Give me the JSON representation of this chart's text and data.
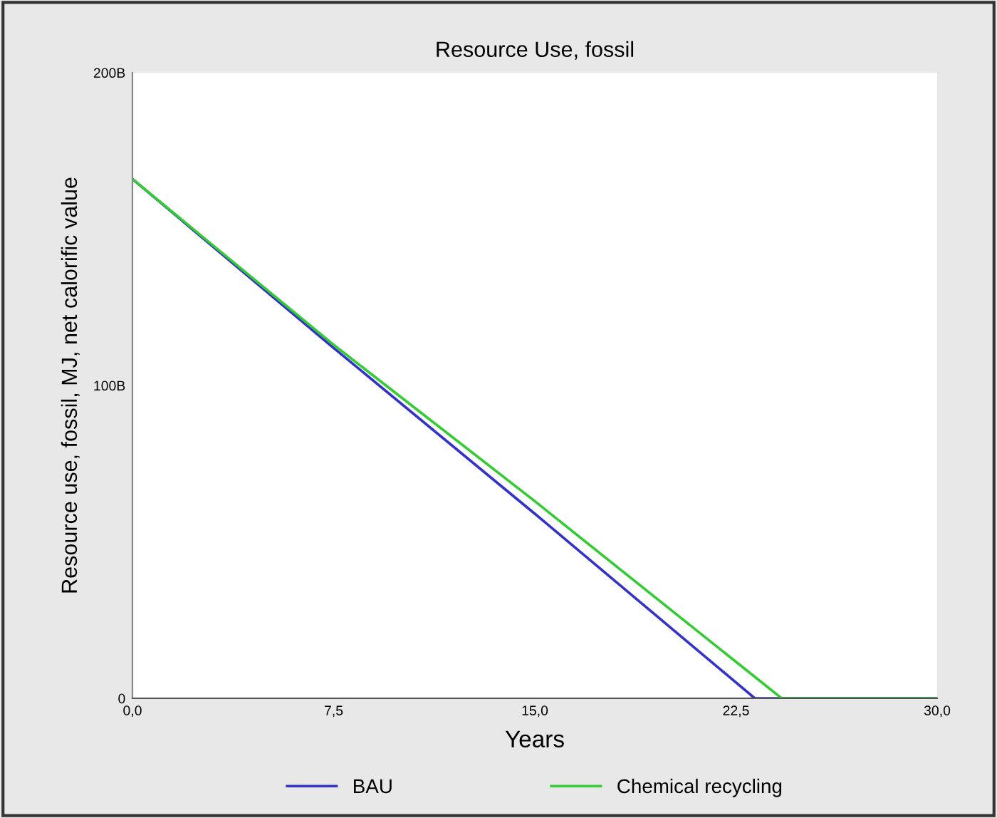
{
  "chart_data": {
    "type": "line",
    "title": "Resource Use, fossil",
    "xlabel": "Years",
    "ylabel": "Resource use, fossil, MJ, net calorific value",
    "series": [
      {
        "name": "BAU",
        "color": "#3333cc",
        "x": [
          0,
          7.5,
          15,
          23.2,
          30
        ],
        "values": [
          166000000000,
          112000000000,
          59000000000,
          0,
          0
        ]
      },
      {
        "name": "Chemical recycling",
        "color": "#33cc33",
        "x": [
          0,
          7.5,
          15,
          24.2,
          30
        ],
        "values": [
          166000000000,
          113000000000,
          63000000000,
          0,
          0
        ]
      }
    ],
    "xlim": [
      0,
      30
    ],
    "ylim": [
      0,
      200000000000
    ],
    "xticks": [
      {
        "value": 0,
        "label": "0,0"
      },
      {
        "value": 7.5,
        "label": "7,5"
      },
      {
        "value": 15,
        "label": "15,0"
      },
      {
        "value": 22.5,
        "label": "22,5"
      },
      {
        "value": 30,
        "label": "30,0"
      }
    ],
    "yticks": [
      0,
      {
        "value": 100000000000,
        "label": "100B"
      },
      {
        "value": 200000000000,
        "label": "200B"
      }
    ],
    "grid": false,
    "legend": "bottom",
    "marker": "none",
    "line_style": "solid"
  }
}
